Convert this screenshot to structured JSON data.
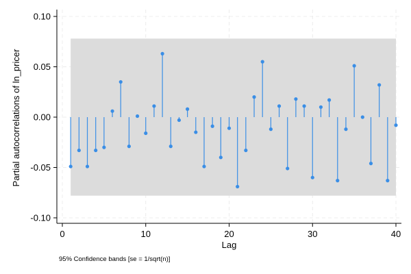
{
  "chart_data": {
    "type": "partial-autocorrelation-stem",
    "xlabel": "Lag",
    "ylabel": "Partial autocorrelations of ln_pricer",
    "note": "95% Confidence bands [se = 1/sqrt(n)]",
    "xlim": [
      0,
      40
    ],
    "ylim": [
      -0.1,
      0.1
    ],
    "x_ticks": [
      0,
      10,
      20,
      30,
      40
    ],
    "y_ticks": [
      -0.1,
      -0.05,
      0.0,
      0.05,
      0.1
    ],
    "x_tick_labels": [
      "0",
      "10",
      "20",
      "30",
      "40"
    ],
    "y_tick_labels": [
      "-0.10",
      "-0.05",
      "0.00",
      "0.05",
      "0.10"
    ],
    "confidence_band": {
      "lower": -0.078,
      "upper": 0.078,
      "x_from": 1,
      "x_to": 40,
      "color": "#dcdcdc"
    },
    "grid": true,
    "series_color": "#3a8ee6",
    "lags": [
      1,
      2,
      3,
      4,
      5,
      6,
      7,
      8,
      9,
      10,
      11,
      12,
      13,
      14,
      15,
      16,
      17,
      18,
      19,
      20,
      21,
      22,
      23,
      24,
      25,
      26,
      27,
      28,
      29,
      30,
      31,
      32,
      33,
      34,
      35,
      36,
      37,
      38,
      39,
      40
    ],
    "values": [
      -0.049,
      -0.033,
      -0.049,
      -0.033,
      -0.03,
      0.006,
      0.035,
      -0.029,
      0.001,
      -0.016,
      0.011,
      0.063,
      -0.029,
      -0.003,
      0.008,
      -0.015,
      -0.049,
      -0.009,
      -0.04,
      -0.011,
      -0.069,
      -0.033,
      0.02,
      0.055,
      -0.012,
      0.011,
      -0.051,
      0.018,
      0.011,
      -0.06,
      0.01,
      0.017,
      -0.063,
      -0.012,
      0.051,
      0.0,
      -0.046,
      0.032,
      -0.063,
      -0.008
    ]
  }
}
